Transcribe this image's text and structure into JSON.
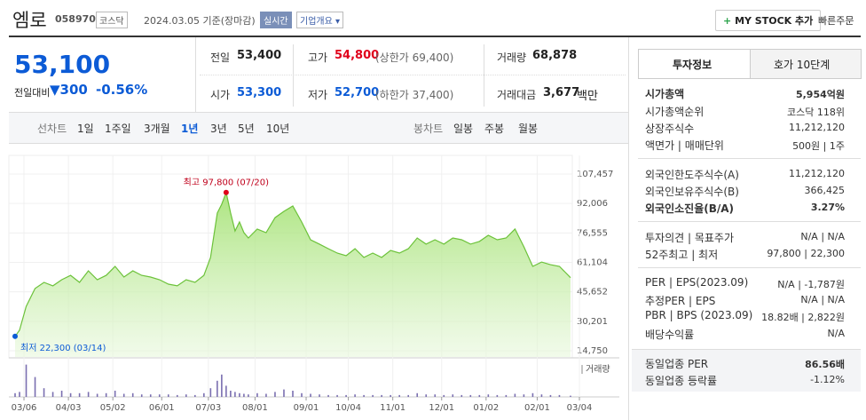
{
  "header": {
    "name": "엠로",
    "code": "058970",
    "market": "코스닥",
    "date": "2024.03.05 기준(장마감)",
    "realtime": "실시간",
    "company_menu": "기업개요",
    "my_stock": "MY STOCK 추가",
    "quick_order": "빠른주문"
  },
  "price": {
    "current": "53,100",
    "change_label": "전일대비",
    "change": "300",
    "change_pct": "-0.56%"
  },
  "quote": {
    "prev_close": {
      "label": "전일",
      "value": "53,400"
    },
    "high": {
      "label": "고가",
      "value": "54,800",
      "extra": "(상한가 69,400)"
    },
    "volume": {
      "label": "거래량",
      "value": "68,878"
    },
    "open": {
      "label": "시가",
      "value": "53,300"
    },
    "low": {
      "label": "저가",
      "value": "52,700",
      "extra": "(하한가 37,400)"
    },
    "amount": {
      "label": "거래대금",
      "value": "3,677",
      "unit": "백만"
    }
  },
  "period_tabs": {
    "label": "선차트",
    "items": [
      "1일",
      "1주일",
      "3개월",
      "1년",
      "3년",
      "5년",
      "10년"
    ]
  },
  "candle_tabs": {
    "label": "봉차트",
    "items": [
      "일봉",
      "주봉",
      "월봉"
    ]
  },
  "chart_data": {
    "type": "area",
    "x": [
      0,
      2,
      5,
      9,
      13,
      17,
      21,
      25,
      29,
      33,
      37,
      41,
      45,
      49,
      53,
      57,
      61,
      65,
      69,
      73,
      77,
      81,
      85,
      88,
      91,
      93,
      95,
      97,
      99,
      101,
      103,
      105,
      109,
      113,
      117,
      121,
      125,
      129,
      133,
      137,
      141,
      145,
      149,
      153,
      157,
      161,
      165,
      169,
      173,
      177,
      181,
      185,
      189,
      193,
      197,
      201,
      205,
      209,
      213,
      217,
      221,
      225,
      229,
      233,
      237,
      241,
      245,
      250
    ],
    "values": [
      22300,
      25500,
      38000,
      47400,
      50600,
      48800,
      52000,
      54300,
      50600,
      56700,
      52000,
      54300,
      59000,
      53400,
      56700,
      54300,
      53400,
      52000,
      49700,
      48800,
      52000,
      50600,
      54300,
      63700,
      87000,
      91600,
      97800,
      87000,
      77600,
      82300,
      76700,
      73900,
      78600,
      76700,
      84600,
      87900,
      90700,
      82300,
      73000,
      70700,
      68300,
      66000,
      64600,
      68300,
      63700,
      66000,
      63700,
      67400,
      66000,
      68300,
      73900,
      70700,
      73000,
      70700,
      73900,
      73000,
      70700,
      72100,
      75300,
      73000,
      73900,
      78600,
      69300,
      59000,
      61300,
      59900,
      59000,
      53100
    ],
    "color": "#6cc23a",
    "xlim": [
      0,
      254
    ],
    "ylim": [
      14750,
      107457
    ],
    "yticks": [
      {
        "value": 107457,
        "label": "107,457"
      },
      {
        "value": 92006,
        "label": "92,006"
      },
      {
        "value": 76555,
        "label": "76,555"
      },
      {
        "value": 61104,
        "label": "61,104"
      },
      {
        "value": 45652,
        "label": "45,652"
      },
      {
        "value": 30201,
        "label": "30,201"
      },
      {
        "value": 14750,
        "label": "14,750"
      }
    ],
    "xticks": [
      {
        "value": 4,
        "label": "03/06"
      },
      {
        "value": 24,
        "label": "04/03"
      },
      {
        "value": 44,
        "label": "05/02"
      },
      {
        "value": 66,
        "label": "06/01"
      },
      {
        "value": 87,
        "label": "07/03"
      },
      {
        "value": 108,
        "label": "08/01"
      },
      {
        "value": 131,
        "label": "09/01"
      },
      {
        "value": 150,
        "label": "10/04"
      },
      {
        "value": 170,
        "label": "11/01"
      },
      {
        "value": 192,
        "label": "12/01"
      },
      {
        "value": 212,
        "label": "01/02"
      },
      {
        "value": 235,
        "label": "02/01"
      },
      {
        "value": 254,
        "label": "03/04"
      }
    ],
    "annotations": {
      "high": {
        "text": "최고 97,800 (07/20)",
        "index": 26
      },
      "low": {
        "text": "최저 22,300 (03/14)",
        "index": 0
      }
    },
    "volume": {
      "name": "거래량",
      "color": "#7a6fb0",
      "y2lim": [
        0,
        3000000
      ],
      "values": [
        300000,
        400000,
        2600000,
        1600000,
        700000,
        400000,
        500000,
        300000,
        300000,
        400000,
        250000,
        300000,
        500000,
        250000,
        300000,
        200000,
        200000,
        200000,
        200000,
        150000,
        200000,
        150000,
        300000,
        700000,
        1300000,
        1800000,
        900000,
        500000,
        400000,
        300000,
        250000,
        200000,
        300000,
        250000,
        400000,
        600000,
        500000,
        300000,
        250000,
        200000,
        150000,
        150000,
        150000,
        200000,
        150000,
        150000,
        150000,
        150000,
        150000,
        150000,
        300000,
        200000,
        200000,
        150000,
        200000,
        150000,
        150000,
        150000,
        200000,
        150000,
        150000,
        250000,
        200000,
        300000,
        200000,
        150000,
        150000,
        100000
      ]
    }
  },
  "info": {
    "tabs": [
      "투자정보",
      "호가 10단계"
    ],
    "market_cap": {
      "label": "시가총액",
      "value": "5,954억원"
    },
    "rank": {
      "label": "시가총액순위",
      "value": "코스닥 118위"
    },
    "shares": {
      "label": "상장주식수",
      "value": "11,212,120"
    },
    "par": {
      "label": "액면가 | 매매단위",
      "value": "500원 | 1주"
    },
    "foreign_limit": {
      "label": "외국인한도주식수(A)",
      "value": "11,212,120"
    },
    "foreign_hold": {
      "label": "외국인보유주식수(B)",
      "value": "366,425"
    },
    "foreign_ratio": {
      "label": "외국인소진율(B/A)",
      "value": "3.27%"
    },
    "opinion": {
      "label": "투자의견 | 목표주가",
      "value": "N/A | N/A"
    },
    "week52": {
      "label": "52주최고 | 최저",
      "value": "97,800 | 22,300"
    },
    "per": {
      "label": "PER | EPS(2023.09)",
      "value": "N/A | -1,787원"
    },
    "est_per": {
      "label": "추정PER | EPS",
      "value": "N/A | N/A"
    },
    "pbr": {
      "label": "PBR | BPS (2023.09)",
      "value": "18.82배 | 2,822원"
    },
    "dividend": {
      "label": "배당수익률",
      "value": "N/A"
    },
    "sector_per": {
      "label": "동일업종 PER",
      "value": "86.56배"
    },
    "sector_change": {
      "label": "동일업종 등락률",
      "value": "-1.12%"
    }
  }
}
